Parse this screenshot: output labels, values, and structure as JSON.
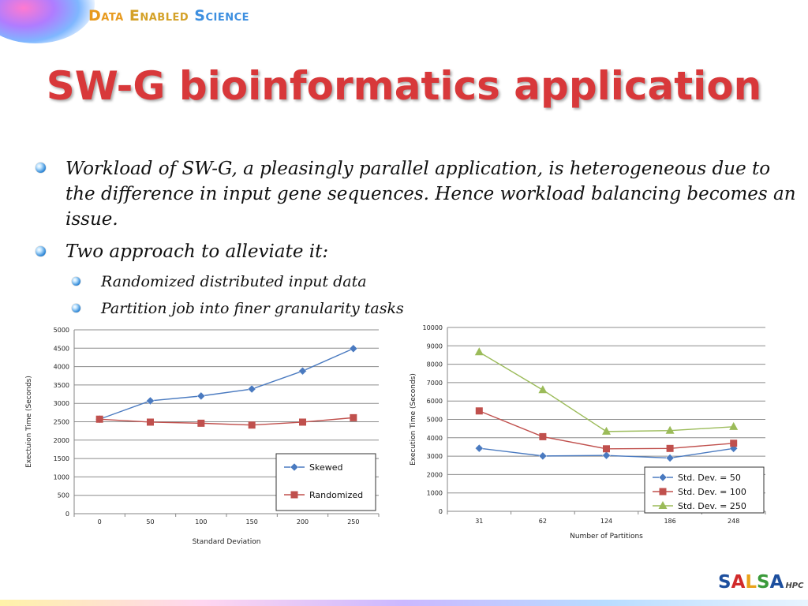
{
  "header": {
    "brand_part1": "Data",
    "brand_part2": "Enabled",
    "brand_part3": "Science",
    "title": "SW-G bioinformatics application"
  },
  "bullets": {
    "b1_line1": "Workload of SW-G, a pleasingly parallel application, is heterogeneous due to",
    "b1_line2": "the difference in input gene sequences. Hence workload balancing becomes an",
    "b1_line3": "issue.",
    "b2": "Two approach to alleviate it:",
    "sub1": "Randomized distributed input data",
    "sub2": "Partition job into finer granularity tasks"
  },
  "footer": {
    "logo_s": "S",
    "logo_a1": "A",
    "logo_l": "L",
    "logo_s2": "S",
    "logo_a2": "A",
    "logo_hpc": "HPC"
  },
  "colors": {
    "title": "#d8383a",
    "series_blue": "#4a7ac0",
    "series_red": "#c0504d",
    "series_green": "#9bbb59"
  },
  "chart_data": [
    {
      "type": "line",
      "xlabel": "Standard Deviation",
      "ylabel": "Exectuion Time (Seconds)",
      "categories": [
        "0",
        "50",
        "100",
        "150",
        "200",
        "250"
      ],
      "ylim": [
        0,
        5000
      ],
      "yticks": [
        "0",
        "500",
        "1000",
        "1500",
        "2000",
        "2500",
        "3000",
        "3500",
        "4000",
        "4500",
        "5000"
      ],
      "grid": true,
      "legend_position": "bottom-right",
      "series": [
        {
          "name": "Skewed",
          "marker": "diamond",
          "color": "#4a7ac0",
          "values": [
            2570,
            3070,
            3200,
            3390,
            3880,
            4490
          ]
        },
        {
          "name": "Randomized",
          "marker": "square",
          "color": "#c0504d",
          "values": [
            2570,
            2490,
            2460,
            2410,
            2490,
            2610
          ]
        }
      ]
    },
    {
      "type": "line",
      "xlabel": "Number of Partitions",
      "ylabel": "Execution Time (Seconds)",
      "categories": [
        "31",
        "62",
        "124",
        "186",
        "248"
      ],
      "ylim": [
        0,
        10000
      ],
      "yticks": [
        "0",
        "1000",
        "2000",
        "3000",
        "4000",
        "5000",
        "6000",
        "7000",
        "8000",
        "9000",
        "10000"
      ],
      "grid": true,
      "legend_position": "bottom-right",
      "series": [
        {
          "name": "Std. Dev. = 50",
          "marker": "diamond",
          "color": "#4a7ac0",
          "values": [
            3430,
            3010,
            3040,
            2900,
            3420
          ]
        },
        {
          "name": "Std. Dev. = 100",
          "marker": "square",
          "color": "#c0504d",
          "values": [
            5460,
            4060,
            3400,
            3420,
            3700
          ]
        },
        {
          "name": "Std. Dev. = 250",
          "marker": "triangle",
          "color": "#9bbb59",
          "values": [
            8660,
            6600,
            4340,
            4390,
            4600
          ]
        }
      ]
    }
  ]
}
